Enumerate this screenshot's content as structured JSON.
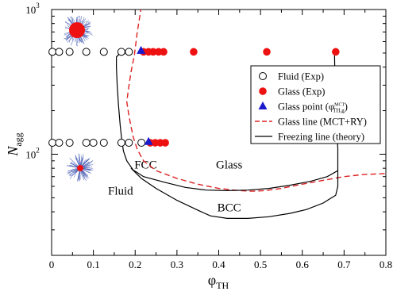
{
  "chart_data": {
    "type": "scatter",
    "xlabel_main": "φ",
    "xlabel_sub": "TH",
    "ylabel_main": "N",
    "ylabel_sub": "agg",
    "xlim": [
      0,
      0.8
    ],
    "ylim": [
      20,
      1000
    ],
    "ylog": true,
    "grid": false,
    "legend_position": "right",
    "x_ticks": [
      "0",
      "0.1",
      "0.2",
      "0.3",
      "0.4",
      "0.5",
      "0.6",
      "0.7",
      "0.8"
    ],
    "x_tick_values": [
      0,
      0.1,
      0.2,
      0.3,
      0.4,
      0.5,
      0.6,
      0.7,
      0.8
    ],
    "y_tick_values": [
      100,
      1000
    ],
    "y_ticks": [
      {
        "base": "10",
        "exp": "2"
      },
      {
        "base": "10",
        "exp": "3"
      }
    ],
    "colors": {
      "fluid": "#000000",
      "glass": "#ee1111",
      "glass_point": "#1a1acc",
      "mct_line": "#dd2222",
      "freezing_line": "#000000"
    },
    "legend": [
      {
        "label": "Fluid (Exp)",
        "marker": "open-circle",
        "color": "#000000"
      },
      {
        "label": "Glass (Exp)",
        "marker": "filled-circle",
        "color": "#ee1111"
      },
      {
        "label": "Glass point (φ",
        "sup": "MCT",
        "sub": "TH,g",
        "label_end": ")",
        "marker": "triangle",
        "color": "#1a1acc"
      },
      {
        "label": "Glass line (MCT+RY)",
        "marker": "dashed-line",
        "color": "#dd2222"
      },
      {
        "label": "Freezing line (theory)",
        "marker": "solid-line",
        "color": "#000000"
      }
    ],
    "region_labels": [
      {
        "text": "FCC",
        "x": 0.225,
        "y": 85
      },
      {
        "text": "Glass",
        "x": 0.425,
        "y": 85
      },
      {
        "text": "Fluid",
        "x": 0.165,
        "y": 56
      },
      {
        "text": "BCC",
        "x": 0.425,
        "y": 43
      }
    ],
    "series": [
      {
        "name": "Fluid (Exp)",
        "marker": "open-circle",
        "points": [
          [
            0.002,
            510
          ],
          [
            0.018,
            510
          ],
          [
            0.043,
            510
          ],
          [
            0.083,
            510
          ],
          [
            0.125,
            510
          ],
          [
            0.167,
            510
          ],
          [
            0.185,
            510
          ],
          [
            0.002,
            120
          ],
          [
            0.018,
            120
          ],
          [
            0.043,
            120
          ],
          [
            0.083,
            120
          ],
          [
            0.1,
            120
          ],
          [
            0.125,
            120
          ],
          [
            0.167,
            120
          ],
          [
            0.185,
            120
          ],
          [
            0.215,
            120
          ]
        ]
      },
      {
        "name": "Glass (Exp)",
        "marker": "filled-circle",
        "points": [
          [
            0.22,
            510
          ],
          [
            0.232,
            510
          ],
          [
            0.243,
            510
          ],
          [
            0.256,
            510
          ],
          [
            0.268,
            510
          ],
          [
            0.34,
            510
          ],
          [
            0.515,
            510
          ],
          [
            0.68,
            510
          ],
          [
            0.236,
            120
          ],
          [
            0.248,
            120
          ],
          [
            0.26,
            120
          ],
          [
            0.272,
            120
          ]
        ]
      },
      {
        "name": "Glass point",
        "marker": "triangle",
        "points": [
          [
            0.214,
            520
          ],
          [
            0.232,
            122
          ]
        ]
      },
      {
        "name": "Glass line (MCT+RY)",
        "marker": "dashed-line",
        "points": [
          [
            0.215,
            1050
          ],
          [
            0.205,
            700
          ],
          [
            0.198,
            480
          ],
          [
            0.19,
            370
          ],
          [
            0.183,
            270
          ],
          [
            0.18,
            230
          ],
          [
            0.185,
            185
          ],
          [
            0.19,
            155
          ],
          [
            0.196,
            130
          ],
          [
            0.205,
            108
          ],
          [
            0.22,
            90
          ],
          [
            0.25,
            77
          ],
          [
            0.3,
            68
          ],
          [
            0.35,
            62
          ],
          [
            0.4,
            58
          ],
          [
            0.45,
            56
          ],
          [
            0.48,
            55.5
          ],
          [
            0.51,
            56
          ],
          [
            0.55,
            58
          ],
          [
            0.6,
            62
          ],
          [
            0.65,
            66
          ],
          [
            0.7,
            70
          ],
          [
            0.75,
            72.5
          ],
          [
            0.8,
            73.5
          ]
        ]
      },
      {
        "name": "Freezing line (theory)",
        "marker": "solid-line",
        "points": [
          [
            0.195,
            510
          ],
          [
            0.167,
            510
          ],
          [
            0.155,
            470
          ],
          [
            0.155,
            400
          ],
          [
            0.157,
            300
          ],
          [
            0.16,
            220
          ],
          [
            0.164,
            160
          ],
          [
            0.168,
            125
          ],
          [
            0.172,
            105
          ],
          [
            0.18,
            90
          ],
          [
            0.195,
            78
          ],
          [
            0.22,
            70
          ],
          [
            0.27,
            64
          ],
          [
            0.32,
            59
          ],
          [
            0.37,
            56.5
          ],
          [
            0.42,
            56
          ],
          [
            0.47,
            56.5
          ],
          [
            0.52,
            58
          ],
          [
            0.57,
            61
          ],
          [
            0.62,
            65
          ],
          [
            0.66,
            70
          ],
          [
            0.685,
            77
          ],
          [
            0.685,
            110
          ],
          [
            0.68,
            200
          ],
          [
            0.678,
            350
          ],
          [
            0.677,
            510
          ]
        ]
      },
      {
        "name": "Freezing line (theory) lower",
        "marker": "solid-line",
        "points": [
          [
            0.19,
            80
          ],
          [
            0.215,
            68
          ],
          [
            0.25,
            58
          ],
          [
            0.3,
            48
          ],
          [
            0.35,
            41
          ],
          [
            0.38,
            37.5
          ],
          [
            0.42,
            36
          ],
          [
            0.47,
            36
          ],
          [
            0.52,
            37
          ],
          [
            0.57,
            39
          ],
          [
            0.61,
            41.5
          ],
          [
            0.65,
            46
          ],
          [
            0.665,
            49
          ],
          [
            0.68,
            52
          ],
          [
            0.685,
            60
          ],
          [
            0.685,
            77
          ]
        ]
      }
    ]
  }
}
